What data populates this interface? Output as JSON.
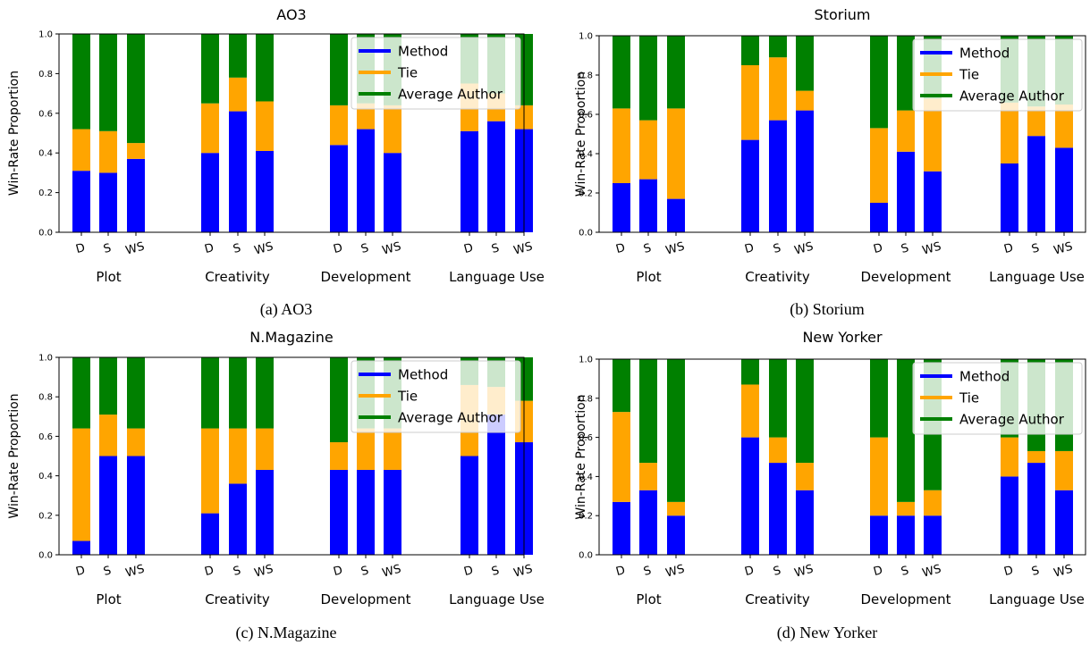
{
  "figure": {
    "ylabel": "Win-Rate Proportion",
    "bar_labels": [
      "D",
      "S",
      "WS"
    ],
    "groups": [
      "Plot",
      "Creativity",
      "Development",
      "Language Use"
    ],
    "legend": [
      "Method",
      "Tie",
      "Average Author"
    ],
    "colors": {
      "method": "#0000ff",
      "tie": "#ffa500",
      "author": "#008000"
    },
    "yticks": [
      "0.0",
      "0.2",
      "0.4",
      "0.6",
      "0.8",
      "1.0"
    ]
  },
  "captions": [
    "(a) AO3",
    "(b) Storium",
    "(c) N.Magazine",
    "(d) New Yorker"
  ],
  "chart_data": [
    {
      "type": "bar",
      "title": "AO3",
      "ylabel": "Win-Rate Proportion",
      "ylim": [
        0,
        1
      ],
      "stacked": true,
      "legend_position": "top-right",
      "categories": [
        "Plot D",
        "Plot S",
        "Plot WS",
        "Creativity D",
        "Creativity S",
        "Creativity WS",
        "Development D",
        "Development S",
        "Development WS",
        "Language Use D",
        "Language Use S",
        "Language Use WS"
      ],
      "series": [
        {
          "name": "Method",
          "values": [
            0.31,
            0.3,
            0.37,
            0.4,
            0.61,
            0.41,
            0.44,
            0.52,
            0.4,
            0.51,
            0.56,
            0.52
          ]
        },
        {
          "name": "Tie",
          "values": [
            0.21,
            0.21,
            0.08,
            0.25,
            0.17,
            0.25,
            0.2,
            0.13,
            0.24,
            0.24,
            0.14,
            0.12
          ]
        },
        {
          "name": "Average Author",
          "values": [
            0.48,
            0.49,
            0.55,
            0.35,
            0.22,
            0.34,
            0.36,
            0.35,
            0.36,
            0.25,
            0.3,
            0.36
          ]
        }
      ]
    },
    {
      "type": "bar",
      "title": "Storium",
      "ylabel": "Win-Rate Proportion",
      "ylim": [
        0,
        1
      ],
      "stacked": true,
      "legend_position": "top-right",
      "categories": [
        "Plot D",
        "Plot S",
        "Plot WS",
        "Creativity D",
        "Creativity S",
        "Creativity WS",
        "Development D",
        "Development S",
        "Development WS",
        "Language Use D",
        "Language Use S",
        "Language Use WS"
      ],
      "series": [
        {
          "name": "Method",
          "values": [
            0.25,
            0.27,
            0.17,
            0.47,
            0.57,
            0.62,
            0.15,
            0.41,
            0.31,
            0.35,
            0.49,
            0.43
          ]
        },
        {
          "name": "Tie",
          "values": [
            0.38,
            0.3,
            0.46,
            0.38,
            0.32,
            0.1,
            0.38,
            0.21,
            0.37,
            0.31,
            0.15,
            0.22
          ]
        },
        {
          "name": "Average Author",
          "values": [
            0.37,
            0.43,
            0.37,
            0.15,
            0.11,
            0.28,
            0.47,
            0.38,
            0.32,
            0.34,
            0.36,
            0.35
          ]
        }
      ]
    },
    {
      "type": "bar",
      "title": "N.Magazine",
      "ylabel": "Win-Rate Proportion",
      "ylim": [
        0,
        1
      ],
      "stacked": true,
      "legend_position": "top-right",
      "categories": [
        "Plot D",
        "Plot S",
        "Plot WS",
        "Creativity D",
        "Creativity S",
        "Creativity WS",
        "Development D",
        "Development S",
        "Development WS",
        "Language Use D",
        "Language Use S",
        "Language Use WS"
      ],
      "series": [
        {
          "name": "Method",
          "values": [
            0.07,
            0.5,
            0.5,
            0.21,
            0.36,
            0.43,
            0.43,
            0.43,
            0.43,
            0.5,
            0.71,
            0.57
          ]
        },
        {
          "name": "Tie",
          "values": [
            0.57,
            0.21,
            0.14,
            0.43,
            0.28,
            0.21,
            0.14,
            0.21,
            0.21,
            0.36,
            0.14,
            0.21
          ]
        },
        {
          "name": "Average Author",
          "values": [
            0.36,
            0.29,
            0.36,
            0.36,
            0.36,
            0.36,
            0.43,
            0.36,
            0.36,
            0.14,
            0.15,
            0.22
          ]
        }
      ]
    },
    {
      "type": "bar",
      "title": "New Yorker",
      "ylabel": "Win-Rate Proportion",
      "ylim": [
        0,
        1
      ],
      "stacked": true,
      "legend_position": "top-right",
      "categories": [
        "Plot D",
        "Plot S",
        "Plot WS",
        "Creativity D",
        "Creativity S",
        "Creativity WS",
        "Development D",
        "Development S",
        "Development WS",
        "Language Use D",
        "Language Use S",
        "Language Use WS"
      ],
      "series": [
        {
          "name": "Method",
          "values": [
            0.27,
            0.33,
            0.2,
            0.6,
            0.47,
            0.33,
            0.2,
            0.2,
            0.2,
            0.4,
            0.47,
            0.33
          ]
        },
        {
          "name": "Tie",
          "values": [
            0.46,
            0.14,
            0.07,
            0.27,
            0.13,
            0.14,
            0.4,
            0.07,
            0.13,
            0.2,
            0.06,
            0.2
          ]
        },
        {
          "name": "Average Author",
          "values": [
            0.27,
            0.53,
            0.73,
            0.13,
            0.4,
            0.53,
            0.4,
            0.73,
            0.67,
            0.4,
            0.47,
            0.47
          ]
        }
      ]
    }
  ]
}
